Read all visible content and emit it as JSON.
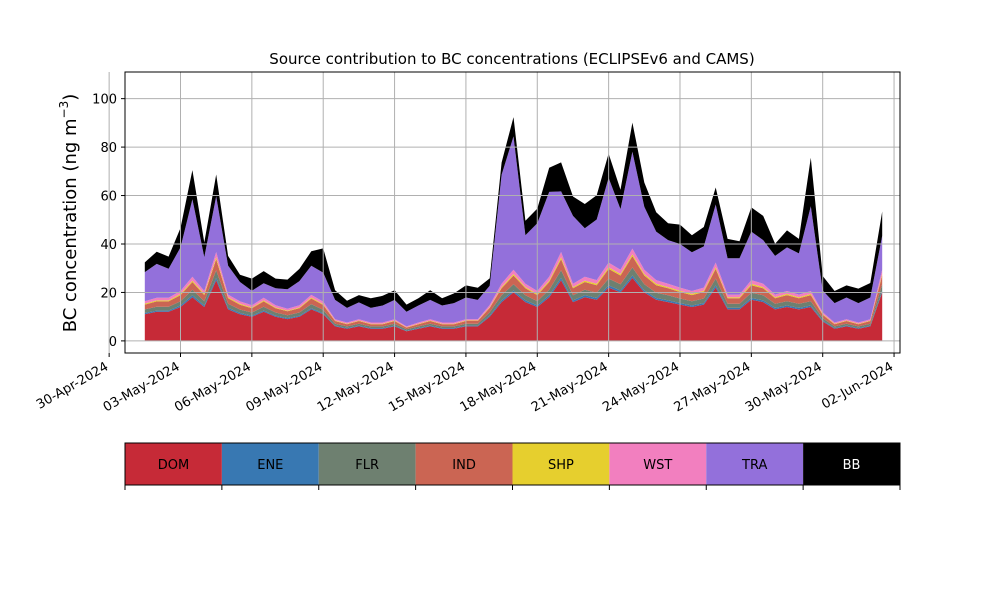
{
  "chart_data": {
    "type": "area",
    "title": "Source contribution to BC concentrations (ECLIPSEv6 and CAMS)",
    "ylabel": "BC concentration (ng m",
    "ylabel_sup": "−3",
    "ylabel_end": ")",
    "ylim": [
      -5,
      111
    ],
    "yticks": [
      0,
      20,
      40,
      60,
      80,
      100
    ],
    "xlim": [
      "2024-04-30T16:00",
      "2024-06-02T06:00"
    ],
    "xticks": [
      "30-Apr-2024",
      "03-May-2024",
      "06-May-2024",
      "09-May-2024",
      "12-May-2024",
      "15-May-2024",
      "18-May-2024",
      "21-May-2024",
      "24-May-2024",
      "27-May-2024",
      "30-May-2024",
      "02-Jun-2024"
    ],
    "grid": true,
    "colors": {
      "DOM": "#c62a37",
      "ENE": "#3878b2",
      "FLR": "#6e8070",
      "IND": "#cb6553",
      "SHP": "#e6cf2e",
      "WST": "#f27fbf",
      "TRA": "#9370db",
      "BB": "#000000"
    },
    "legend": [
      "DOM",
      "ENE",
      "FLR",
      "IND",
      "SHP",
      "WST",
      "TRA",
      "BB"
    ],
    "x": [
      "01-May-2024 12:00",
      "02-May-2024 00:00",
      "02-May-2024 12:00",
      "03-May-2024 00:00",
      "03-May-2024 12:00",
      "04-May-2024 00:00",
      "04-May-2024 12:00",
      "05-May-2024 00:00",
      "05-May-2024 12:00",
      "06-May-2024 00:00",
      "06-May-2024 12:00",
      "07-May-2024 00:00",
      "07-May-2024 12:00",
      "08-May-2024 00:00",
      "08-May-2024 12:00",
      "09-May-2024 00:00",
      "09-May-2024 12:00",
      "10-May-2024 00:00",
      "10-May-2024 12:00",
      "11-May-2024 00:00",
      "11-May-2024 12:00",
      "12-May-2024 00:00",
      "12-May-2024 12:00",
      "13-May-2024 00:00",
      "13-May-2024 12:00",
      "14-May-2024 00:00",
      "14-May-2024 12:00",
      "15-May-2024 00:00",
      "15-May-2024 12:00",
      "16-May-2024 00:00",
      "16-May-2024 12:00",
      "17-May-2024 00:00",
      "17-May-2024 12:00",
      "18-May-2024 00:00",
      "18-May-2024 12:00",
      "19-May-2024 00:00",
      "19-May-2024 12:00",
      "20-May-2024 00:00",
      "20-May-2024 12:00",
      "21-May-2024 00:00",
      "21-May-2024 12:00",
      "22-May-2024 00:00",
      "22-May-2024 12:00",
      "23-May-2024 00:00",
      "23-May-2024 12:00",
      "24-May-2024 00:00",
      "24-May-2024 12:00",
      "25-May-2024 00:00",
      "25-May-2024 12:00",
      "26-May-2024 00:00",
      "26-May-2024 12:00",
      "27-May-2024 00:00",
      "27-May-2024 12:00",
      "28-May-2024 00:00",
      "28-May-2024 12:00",
      "29-May-2024 00:00",
      "29-May-2024 12:00",
      "30-May-2024 00:00",
      "30-May-2024 12:00",
      "31-May-2024 00:00",
      "31-May-2024 12:00",
      "01-Jun-2024 00:00",
      "01-Jun-2024 12:00"
    ],
    "series": [
      {
        "name": "DOM",
        "values": [
          11,
          12,
          12,
          14,
          18,
          14,
          25,
          13,
          11,
          10,
          12,
          10,
          9,
          10,
          13,
          11,
          6,
          5,
          6,
          5,
          5,
          6,
          4,
          5,
          6,
          5,
          5,
          6,
          6,
          10,
          16,
          20,
          16,
          14,
          18,
          25,
          16,
          18,
          17,
          22,
          20,
          26,
          20,
          17,
          16,
          15,
          14,
          15,
          22,
          13,
          13,
          17,
          16,
          13,
          14,
          13,
          14,
          8,
          5,
          6,
          5,
          6,
          20
        ]
      },
      {
        "name": "ENE",
        "values": [
          0.5,
          0.5,
          0.5,
          0.6,
          0.8,
          0.6,
          1,
          0.6,
          0.5,
          0.4,
          0.5,
          0.4,
          0.4,
          0.4,
          0.5,
          0.4,
          0.3,
          0.3,
          0.3,
          0.3,
          0.3,
          0.3,
          0.2,
          0.3,
          0.3,
          0.3,
          0.3,
          0.3,
          0.3,
          0.5,
          0.7,
          0.8,
          0.7,
          0.6,
          0.8,
          1,
          0.7,
          0.8,
          0.7,
          0.9,
          0.8,
          1,
          0.8,
          0.7,
          0.7,
          0.6,
          0.6,
          0.6,
          0.9,
          0.6,
          0.6,
          0.7,
          0.7,
          0.6,
          0.6,
          0.6,
          0.6,
          0.4,
          0.3,
          0.3,
          0.3,
          0.3,
          0.8
        ]
      },
      {
        "name": "FLR",
        "values": [
          1.5,
          1.6,
          1.6,
          1.8,
          2.3,
          1.8,
          3.2,
          1.7,
          1.4,
          1.3,
          1.6,
          1.3,
          1.2,
          1.3,
          1.7,
          1.4,
          0.8,
          0.7,
          0.8,
          0.7,
          0.7,
          0.8,
          0.6,
          0.7,
          0.8,
          0.7,
          0.7,
          0.8,
          0.8,
          1.3,
          2.1,
          2.6,
          2.1,
          1.8,
          2.3,
          3.2,
          2.1,
          2.3,
          2.2,
          2.8,
          2.6,
          3.3,
          2.6,
          2.2,
          2.1,
          1.9,
          1.8,
          1.9,
          2.8,
          1.7,
          1.7,
          2.2,
          2.1,
          1.7,
          1.8,
          1.7,
          1.8,
          1.0,
          0.7,
          0.8,
          0.7,
          0.8,
          2.6
        ]
      },
      {
        "name": "IND",
        "values": [
          2.0,
          2.2,
          2.2,
          2.5,
          3.2,
          2.5,
          4.5,
          2.3,
          2.0,
          1.8,
          2.2,
          1.8,
          1.6,
          1.8,
          2.3,
          2.0,
          1.1,
          0.9,
          1.1,
          0.9,
          0.9,
          1.1,
          0.7,
          0.9,
          1.1,
          0.9,
          0.9,
          1.1,
          1.1,
          1.8,
          2.9,
          3.6,
          2.9,
          2.5,
          3.2,
          4.5,
          2.9,
          3.2,
          3.1,
          4.0,
          3.6,
          4.7,
          3.6,
          3.1,
          2.9,
          2.7,
          2.5,
          2.7,
          4.0,
          2.3,
          2.3,
          3.1,
          2.9,
          2.3,
          2.5,
          2.3,
          2.5,
          1.4,
          0.9,
          1.1,
          0.9,
          1.1,
          3.6
        ]
      },
      {
        "name": "SHP",
        "values": [
          0.4,
          0.4,
          0.4,
          0.5,
          0.6,
          0.5,
          0.8,
          0.4,
          0.4,
          0.3,
          0.4,
          0.3,
          0.3,
          0.3,
          0.4,
          0.4,
          0.2,
          0.2,
          0.2,
          0.2,
          0.2,
          0.2,
          0.1,
          0.2,
          0.2,
          0.2,
          0.2,
          0.2,
          0.2,
          0.3,
          0.5,
          0.6,
          0.5,
          0.5,
          0.6,
          0.8,
          0.5,
          0.6,
          0.6,
          0.7,
          0.6,
          0.8,
          0.6,
          0.6,
          0.5,
          0.5,
          0.5,
          0.5,
          0.7,
          0.4,
          0.4,
          0.6,
          0.5,
          0.4,
          0.5,
          0.4,
          0.5,
          0.3,
          0.2,
          0.2,
          0.2,
          0.2,
          0.6
        ]
      },
      {
        "name": "WST",
        "values": [
          1.0,
          1.1,
          1.1,
          1.2,
          1.6,
          1.2,
          2.2,
          1.1,
          1.0,
          0.9,
          1.1,
          0.9,
          0.8,
          0.9,
          1.1,
          1.0,
          0.5,
          0.5,
          0.5,
          0.5,
          0.5,
          0.5,
          0.4,
          0.5,
          0.5,
          0.5,
          0.5,
          0.5,
          0.5,
          0.9,
          1.4,
          1.8,
          1.4,
          1.2,
          1.6,
          2.2,
          1.4,
          1.6,
          1.5,
          1.9,
          1.8,
          2.3,
          1.8,
          1.5,
          1.4,
          1.3,
          1.2,
          1.3,
          1.9,
          1.1,
          1.1,
          1.5,
          1.4,
          1.1,
          1.2,
          1.1,
          1.2,
          0.7,
          0.5,
          0.5,
          0.5,
          0.5,
          1.8
        ]
      },
      {
        "name": "TRA",
        "values": [
          12,
          14,
          12,
          18,
          32,
          14,
          23,
          12,
          8,
          6,
          6,
          7,
          8,
          10,
          12,
          12,
          8,
          6,
          7,
          6,
          7,
          8,
          6,
          7,
          8,
          7,
          8,
          9,
          8,
          8,
          45,
          55,
          20,
          28,
          35,
          25,
          28,
          20,
          25,
          35,
          25,
          40,
          26,
          20,
          18,
          18,
          16,
          17,
          24,
          15,
          15,
          20,
          18,
          16,
          18,
          17,
          35,
          9,
          8,
          9,
          8,
          9,
          14
        ]
      },
      {
        "name": "BB",
        "values": [
          4,
          5,
          5,
          8,
          12,
          6,
          9,
          4,
          3,
          5,
          5,
          4,
          4,
          5,
          6,
          10,
          4,
          3,
          3,
          4,
          4,
          4,
          3,
          3,
          4,
          3,
          4,
          5,
          5,
          3,
          5,
          8,
          6,
          6,
          10,
          12,
          8,
          10,
          10,
          10,
          8,
          12,
          10,
          8,
          7,
          8,
          7,
          8,
          7,
          8,
          7,
          10,
          10,
          5,
          7,
          6,
          20,
          6,
          5,
          5,
          6,
          6,
          10
        ]
      }
    ]
  }
}
